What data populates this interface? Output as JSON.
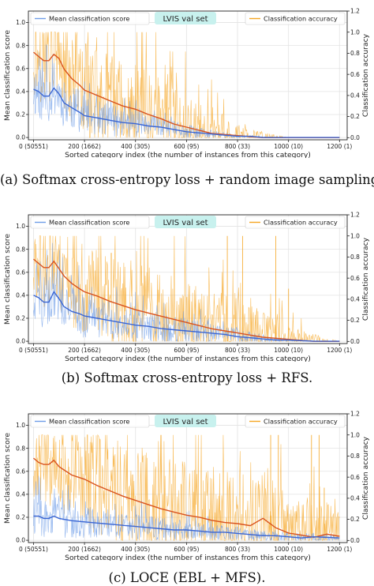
{
  "colors": {
    "score": "#6f9de8",
    "score_trend": "#3a66d4",
    "accuracy": "#f5a623",
    "accuracy_trend": "#d9531e",
    "title_bg": "#c8f1ee"
  },
  "chart_data": [
    {
      "id": "a",
      "type": "line",
      "caption": "(a)  Softmax cross-entropy loss + random image sampling.",
      "title": "LVIS val set",
      "xlabel": "Sorted category index (the number of instances from this category)",
      "ylabel_left": "Mean classification score",
      "ylabel_right": "Classification accuracy",
      "x_ticks": [
        {
          "value": 0,
          "label": "0 (50551)"
        },
        {
          "value": 200,
          "label": "200 (1662)"
        },
        {
          "value": 400,
          "label": "400 (305)"
        },
        {
          "value": 600,
          "label": "600 (95)"
        },
        {
          "value": 800,
          "label": "800 (33)"
        },
        {
          "value": 1000,
          "label": "1000 (10)"
        },
        {
          "value": 1200,
          "label": "1200 (1)"
        }
      ],
      "xlim": [
        -20,
        1230
      ],
      "ylim_left": [
        -0.02,
        1.1
      ],
      "ylim_right": [
        -0.02,
        1.2
      ],
      "y_ticks_left": [
        0.0,
        0.2,
        0.4,
        0.6,
        0.8,
        1.0
      ],
      "y_ticks_right": [
        0.0,
        0.2,
        0.4,
        0.6,
        0.8,
        1.0,
        1.2
      ],
      "grid": true,
      "legend": [
        {
          "name": "Mean classification score",
          "placement": "upper-left"
        },
        {
          "name": "Classification accuracy",
          "placement": "upper-right"
        }
      ],
      "series": [
        {
          "name": "Mean classification score",
          "axis": "left",
          "trend": {
            "x": [
              0,
              20,
              40,
              60,
              80,
              100,
              120,
              150,
              180,
              200,
              250,
              300,
              350,
              400,
              450,
              500,
              550,
              600,
              650,
              700,
              750,
              800,
              850,
              900,
              1000,
              1100,
              1200
            ],
            "y": [
              0.42,
              0.4,
              0.36,
              0.36,
              0.43,
              0.38,
              0.3,
              0.26,
              0.22,
              0.19,
              0.17,
              0.15,
              0.13,
              0.12,
              0.1,
              0.09,
              0.07,
              0.05,
              0.04,
              0.03,
              0.02,
              0.01,
              0.01,
              0.0,
              0.0,
              0.0,
              0.0
            ]
          },
          "noise_envelope": {
            "x": [
              0,
              100,
              200,
              300,
              400,
              500,
              600,
              700,
              800,
              1000,
              1200
            ],
            "y": [
              0.18,
              0.16,
              0.12,
              0.1,
              0.08,
              0.06,
              0.05,
              0.03,
              0.01,
              0.0,
              0.0
            ]
          }
        },
        {
          "name": "Classification accuracy",
          "axis": "right",
          "trend": {
            "x": [
              0,
              20,
              40,
              60,
              80,
              100,
              120,
              150,
              180,
              200,
              250,
              300,
              350,
              400,
              450,
              500,
              550,
              600,
              650,
              700,
              750,
              800,
              850,
              900,
              1000,
              1100,
              1200
            ],
            "y": [
              0.81,
              0.77,
              0.73,
              0.73,
              0.79,
              0.75,
              0.65,
              0.56,
              0.5,
              0.45,
              0.4,
              0.35,
              0.3,
              0.27,
              0.22,
              0.18,
              0.13,
              0.1,
              0.07,
              0.04,
              0.03,
              0.02,
              0.01,
              0.0,
              0.0,
              0.0,
              0.0
            ]
          },
          "noise_envelope": {
            "x": [
              0,
              100,
              200,
              300,
              400,
              500,
              600,
              700,
              800,
              1000,
              1200
            ],
            "y": [
              0.3,
              0.32,
              0.32,
              0.32,
              0.3,
              0.28,
              0.25,
              0.18,
              0.08,
              0.0,
              0.0
            ]
          }
        }
      ]
    },
    {
      "id": "b",
      "type": "line",
      "caption": "(b)  Softmax cross-entropy loss + RFS.",
      "title": "LVIS val set",
      "xlabel": "Sorted category index (the number of instances from this category)",
      "ylabel_left": "Mean classification score",
      "ylabel_right": "Classification accuracy",
      "x_ticks": [
        {
          "value": 0,
          "label": "0 (50551)"
        },
        {
          "value": 200,
          "label": "200 (1662)"
        },
        {
          "value": 400,
          "label": "400 (305)"
        },
        {
          "value": 600,
          "label": "600 (95)"
        },
        {
          "value": 800,
          "label": "800 (33)"
        },
        {
          "value": 1000,
          "label": "1000 (10)"
        },
        {
          "value": 1200,
          "label": "1200 (1)"
        }
      ],
      "xlim": [
        -20,
        1230
      ],
      "ylim_left": [
        -0.02,
        1.1
      ],
      "ylim_right": [
        -0.02,
        1.2
      ],
      "y_ticks_left": [
        0.0,
        0.2,
        0.4,
        0.6,
        0.8,
        1.0
      ],
      "y_ticks_right": [
        0.0,
        0.2,
        0.4,
        0.6,
        0.8,
        1.0,
        1.2
      ],
      "grid": true,
      "legend": [
        {
          "name": "Mean classification score",
          "placement": "upper-left"
        },
        {
          "name": "Classification accuracy",
          "placement": "upper-right"
        }
      ],
      "series": [
        {
          "name": "Mean classification score",
          "axis": "left",
          "trend": {
            "x": [
              0,
              20,
              40,
              60,
              80,
              100,
              120,
              150,
              180,
              200,
              250,
              300,
              350,
              400,
              450,
              500,
              550,
              600,
              650,
              700,
              750,
              800,
              850,
              900,
              950,
              1000,
              1100,
              1200
            ],
            "y": [
              0.4,
              0.38,
              0.34,
              0.34,
              0.43,
              0.37,
              0.3,
              0.26,
              0.24,
              0.22,
              0.2,
              0.18,
              0.16,
              0.14,
              0.13,
              0.11,
              0.1,
              0.09,
              0.08,
              0.07,
              0.06,
              0.04,
              0.03,
              0.02,
              0.01,
              0.01,
              0.0,
              0.0
            ]
          },
          "noise_envelope": {
            "x": [
              0,
              100,
              200,
              300,
              400,
              500,
              600,
              700,
              800,
              900,
              1000,
              1200
            ],
            "y": [
              0.18,
              0.16,
              0.14,
              0.12,
              0.1,
              0.09,
              0.08,
              0.06,
              0.05,
              0.03,
              0.01,
              0.0
            ]
          }
        },
        {
          "name": "Classification accuracy",
          "axis": "right",
          "trend": {
            "x": [
              0,
              20,
              40,
              60,
              80,
              100,
              120,
              150,
              180,
              200,
              250,
              300,
              350,
              400,
              450,
              500,
              550,
              600,
              650,
              700,
              750,
              800,
              850,
              900,
              950,
              1000,
              1100,
              1200
            ],
            "y": [
              0.78,
              0.74,
              0.7,
              0.7,
              0.76,
              0.69,
              0.62,
              0.55,
              0.5,
              0.47,
              0.43,
              0.38,
              0.34,
              0.3,
              0.27,
              0.24,
              0.21,
              0.18,
              0.15,
              0.12,
              0.1,
              0.08,
              0.06,
              0.04,
              0.03,
              0.02,
              0.0,
              0.0
            ]
          },
          "noise_envelope": {
            "x": [
              0,
              100,
              200,
              300,
              400,
              500,
              600,
              700,
              800,
              900,
              1000,
              1200
            ],
            "y": [
              0.28,
              0.3,
              0.32,
              0.33,
              0.33,
              0.32,
              0.3,
              0.28,
              0.24,
              0.18,
              0.1,
              0.0
            ]
          },
          "spikes": [
            {
              "x": 760,
              "y": 1.0
            },
            {
              "x": 820,
              "y": 1.0
            },
            {
              "x": 950,
              "y": 1.0
            },
            {
              "x": 1000,
              "y": 0.5
            }
          ]
        }
      ]
    },
    {
      "id": "c",
      "type": "line",
      "caption": "(c)  LOCE (EBL + MFS).",
      "title": "LVIS val set",
      "xlabel": "Sorted category index (the number of instances from this category)",
      "ylabel_left": "Mean classification score",
      "ylabel_right": "Classification accuracy",
      "x_ticks": [
        {
          "value": 0,
          "label": "0 (50551)"
        },
        {
          "value": 200,
          "label": "200 (1662)"
        },
        {
          "value": 400,
          "label": "400 (305)"
        },
        {
          "value": 600,
          "label": "600 (95)"
        },
        {
          "value": 800,
          "label": "800 (33)"
        },
        {
          "value": 1000,
          "label": "1000 (10)"
        },
        {
          "value": 1200,
          "label": "1200 (1)"
        }
      ],
      "xlim": [
        -20,
        1230
      ],
      "ylim_left": [
        -0.02,
        1.1
      ],
      "ylim_right": [
        -0.02,
        1.2
      ],
      "y_ticks_left": [
        0.0,
        0.2,
        0.4,
        0.6,
        0.8,
        1.0
      ],
      "y_ticks_right": [
        0.0,
        0.2,
        0.4,
        0.6,
        0.8,
        1.0,
        1.2
      ],
      "grid": true,
      "legend": [
        {
          "name": "Mean classification score",
          "placement": "upper-left"
        },
        {
          "name": "Classification accuracy",
          "placement": "upper-right"
        }
      ],
      "series": [
        {
          "name": "Mean classification score",
          "axis": "left",
          "trend": {
            "x": [
              0,
              20,
              40,
              60,
              80,
              100,
              150,
              200,
              250,
              300,
              350,
              400,
              450,
              500,
              550,
              600,
              650,
              700,
              750,
              800,
              850,
              900,
              950,
              1000,
              1050,
              1100,
              1200
            ],
            "y": [
              0.21,
              0.21,
              0.19,
              0.19,
              0.21,
              0.19,
              0.17,
              0.16,
              0.15,
              0.14,
              0.13,
              0.12,
              0.11,
              0.1,
              0.09,
              0.09,
              0.08,
              0.07,
              0.07,
              0.06,
              0.05,
              0.04,
              0.04,
              0.03,
              0.02,
              0.03,
              0.02
            ]
          },
          "noise_envelope": {
            "x": [
              0,
              100,
              200,
              300,
              400,
              500,
              600,
              700,
              800,
              900,
              1000,
              1200
            ],
            "y": [
              0.12,
              0.12,
              0.1,
              0.09,
              0.08,
              0.07,
              0.06,
              0.05,
              0.04,
              0.04,
              0.03,
              0.02
            ]
          }
        },
        {
          "name": "Classification accuracy",
          "axis": "right",
          "trend": {
            "x": [
              0,
              20,
              40,
              60,
              80,
              100,
              150,
              200,
              250,
              300,
              350,
              400,
              450,
              500,
              550,
              600,
              650,
              700,
              750,
              800,
              850,
              900,
              950,
              1000,
              1050,
              1100,
              1150,
              1200
            ],
            "y": [
              0.78,
              0.74,
              0.72,
              0.72,
              0.76,
              0.7,
              0.62,
              0.58,
              0.52,
              0.47,
              0.42,
              0.38,
              0.34,
              0.3,
              0.27,
              0.24,
              0.22,
              0.19,
              0.17,
              0.16,
              0.14,
              0.21,
              0.12,
              0.07,
              0.05,
              0.03,
              0.06,
              0.04
            ]
          },
          "noise_envelope": {
            "x": [
              0,
              100,
              200,
              300,
              400,
              500,
              600,
              700,
              800,
              900,
              1000,
              1200
            ],
            "y": [
              0.28,
              0.3,
              0.33,
              0.36,
              0.38,
              0.38,
              0.38,
              0.37,
              0.36,
              0.34,
              0.3,
              0.2
            ]
          },
          "spikes": [
            {
              "x": 930,
              "y": 1.0
            },
            {
              "x": 960,
              "y": 1.0
            },
            {
              "x": 1090,
              "y": 1.0
            },
            {
              "x": 1120,
              "y": 1.0
            },
            {
              "x": 1140,
              "y": 0.5
            }
          ]
        }
      ]
    }
  ]
}
